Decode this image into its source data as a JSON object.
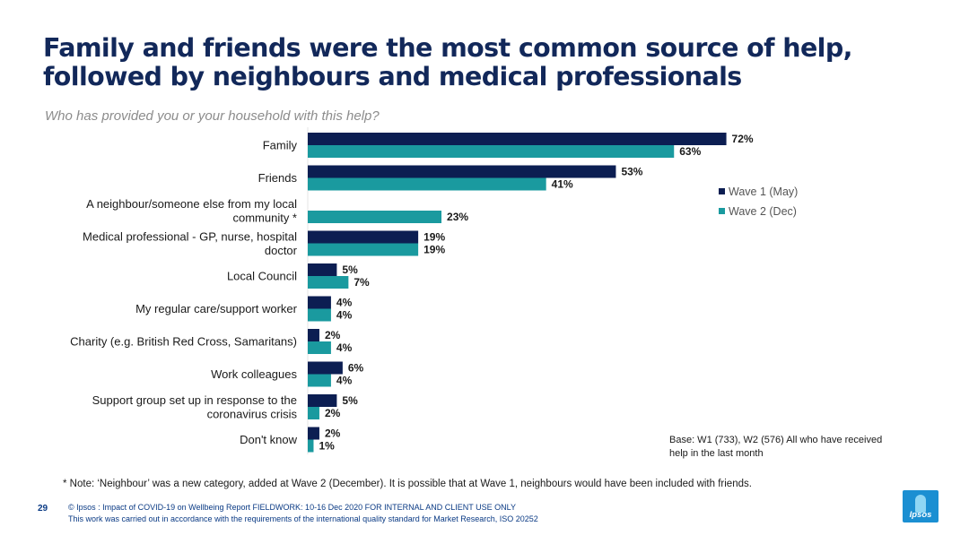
{
  "title": "Family and friends were the most common source of help, followed by neighbours and medical professionals",
  "subtitle": "Who has provided you or your household with this help?",
  "chart_data": {
    "type": "bar",
    "orientation": "horizontal",
    "categories": [
      [
        "Family"
      ],
      [
        "Friends"
      ],
      [
        "A neighbour/someone else from my local",
        "community *"
      ],
      [
        "Medical professional - GP, nurse, hospital",
        "doctor"
      ],
      [
        "Local Council"
      ],
      [
        "My regular care/support worker"
      ],
      [
        "Charity (e.g. British Red Cross, Samaritans)"
      ],
      [
        "Work colleagues"
      ],
      [
        "Support group set up in response to the",
        "coronavirus crisis"
      ],
      [
        "Don't know"
      ]
    ],
    "series": [
      {
        "name": "Wave 1 (May)",
        "color": "#0c1e52",
        "values": [
          72,
          53,
          null,
          19,
          5,
          4,
          2,
          6,
          5,
          2
        ]
      },
      {
        "name": "Wave 2 (Dec)",
        "color": "#1a9a9f",
        "values": [
          63,
          41,
          23,
          19,
          7,
          4,
          4,
          4,
          2,
          1
        ]
      }
    ],
    "value_suffix": "%",
    "legend_position": "right",
    "grid": false
  },
  "base_note": "Base: W1 (733), W2 (576) All who have received help in the last month",
  "note": "* Note: ‘Neighbour’ was a new category, added at Wave 2 (December). It is possible that at Wave 1, neighbours would have been included with friends.",
  "footer": {
    "page_number": "29",
    "line1": "© Ipsos : Impact of COVID-19 on Wellbeing Report FIELDWORK: 10-16 Dec 2020 FOR INTERNAL AND CLIENT USE ONLY",
    "line2": "This work was carried out in accordance with the requirements of the international quality standard for Market Research, ISO 20252"
  },
  "logo_text": "Ipsos"
}
